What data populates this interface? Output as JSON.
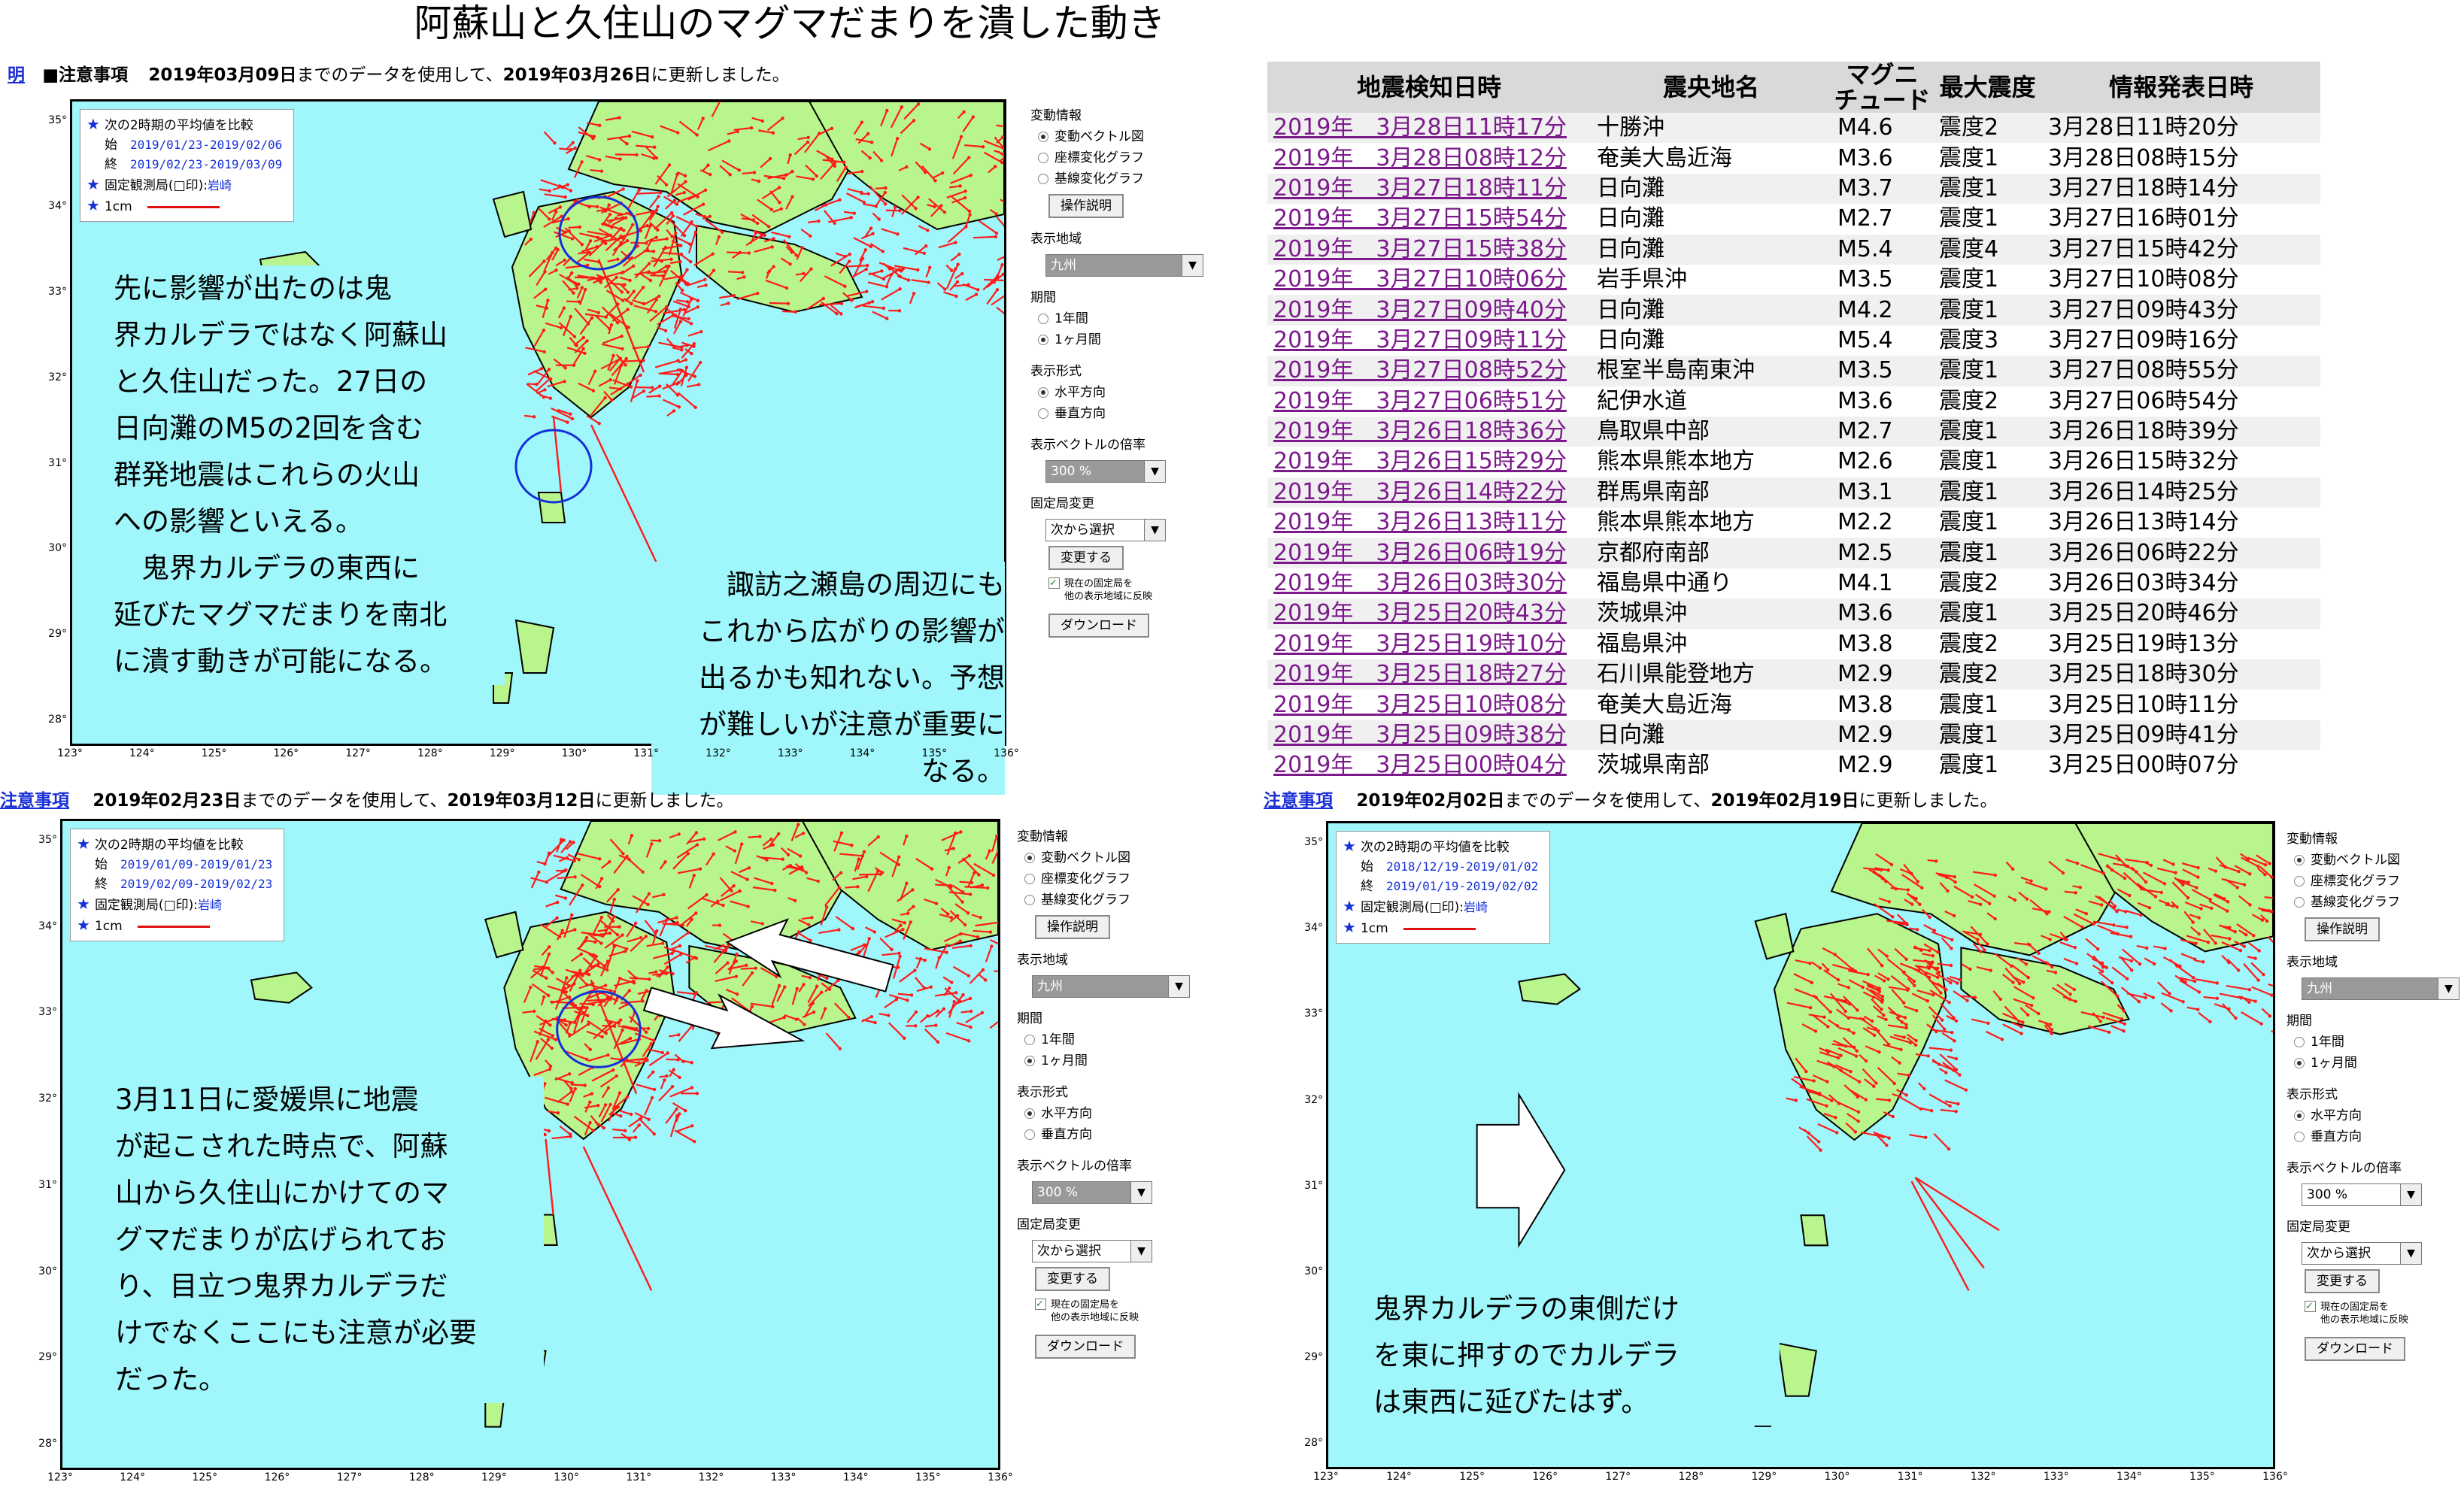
{
  "title": "阿蘇山と久住山のマグマだまりを潰した動き",
  "legend_common": {
    "compare_label": "次の2時期の平均値を比較",
    "start_label": "始",
    "end_label": "終",
    "fixed_station_label": "固定観測局(□印):",
    "fixed_station": "岩崎",
    "scale_label": "1cm"
  },
  "axes": {
    "lat": [
      "35°",
      "34°",
      "33°",
      "32°",
      "31°",
      "30°",
      "29°",
      "28°"
    ],
    "lon": [
      "123°",
      "124°",
      "125°",
      "126°",
      "127°",
      "128°",
      "129°",
      "130°",
      "131°",
      "132°",
      "133°",
      "134°",
      "135°",
      "136°"
    ]
  },
  "controls": {
    "fluct_title": "変動情報",
    "fluct_options": [
      "変動ベクトル図",
      "座標変化グラフ",
      "基線変化グラフ"
    ],
    "manual_button": "操作説明",
    "region_title": "表示地域",
    "region_value": "九州",
    "period_title": "期間",
    "period_options": [
      "1年間",
      "1ヶ月間"
    ],
    "format_title": "表示形式",
    "format_options": [
      "水平方向",
      "垂直方向"
    ],
    "magnify_title": "表示ベクトルの倍率",
    "magnify_value": "300 %",
    "fixed_title": "固定局変更",
    "fixed_value": "次から選択",
    "change_button": "変更する",
    "reflect_line1": "現在の固定局を",
    "reflect_line2": "他の表示地域に反映",
    "download_button": "ダウンロード"
  },
  "panel1": {
    "hdr_prefix": "明",
    "hdr_link": "■注意事項",
    "hdr_date1": "2019年03月09日",
    "hdr_mid": "までのデータを使用して、",
    "hdr_date2": "2019年03月26日",
    "hdr_end": "に更新しました。",
    "start_range": "2019/01/23-2019/02/06",
    "end_range": "2019/02/23-2019/03/09",
    "note_left": [
      "先に影響が出たのは鬼",
      "界カルデラではなく阿蘇山",
      "と久住山だった。27日の",
      "日向灘のM5の2回を含む",
      "群発地震はこれらの火山",
      "への影響といえる。",
      "　鬼界カルデラの東西に",
      "延びたマグマだまりを南北",
      "に潰す動きが可能になる。"
    ],
    "note_right": [
      "諏訪之瀬島の周辺にも",
      "これから広がりの影響が",
      "出るかも知れない。予想",
      "が難しいが注意が重要に",
      "なる。"
    ]
  },
  "panel2": {
    "hdr_link": "注意事項",
    "hdr_date1": "2019年02月23日",
    "hdr_mid": "までのデータを使用して、",
    "hdr_date2": "2019年03月12日",
    "hdr_end": "に更新しました。",
    "start_range": "2019/01/09-2019/01/23",
    "end_range": "2019/02/09-2019/02/23",
    "note": [
      "3月11日に愛媛県に地震",
      "が起こされた時点で、阿蘇",
      "山から久住山にかけてのマ",
      "グマだまりが広げられてお",
      "り、目立つ鬼界カルデラだ",
      "けでなくここにも注意が必要",
      "だった。"
    ]
  },
  "panel3": {
    "hdr_link": "注意事項",
    "hdr_date1": "2019年02月02日",
    "hdr_mid": "までのデータを使用して、",
    "hdr_date2": "2019年02月19日",
    "hdr_end": "に更新しました。",
    "start_range": "2018/12/19-2019/01/02",
    "end_range": "2019/01/19-2019/02/02",
    "note": [
      "鬼界カルデラの東側だけ",
      "を東に押すのでカルデラ",
      "は東西に延びたはず。"
    ]
  },
  "eq_table": {
    "headers": [
      "地震検知日時",
      "震央地名",
      "マグニ チュード",
      "最大震度",
      "情報発表日時"
    ],
    "rows": [
      [
        "2019年　3月28日11時17分",
        "十勝沖",
        "M4.6",
        "震度2",
        "3月28日11時20分"
      ],
      [
        "2019年　3月28日08時12分",
        "奄美大島近海",
        "M3.6",
        "震度1",
        "3月28日08時15分"
      ],
      [
        "2019年　3月27日18時11分",
        "日向灘",
        "M3.7",
        "震度1",
        "3月27日18時14分"
      ],
      [
        "2019年　3月27日15時54分",
        "日向灘",
        "M2.7",
        "震度1",
        "3月27日16時01分"
      ],
      [
        "2019年　3月27日15時38分",
        "日向灘",
        "M5.4",
        "震度4",
        "3月27日15時42分"
      ],
      [
        "2019年　3月27日10時06分",
        "岩手県沖",
        "M3.5",
        "震度1",
        "3月27日10時08分"
      ],
      [
        "2019年　3月27日09時40分",
        "日向灘",
        "M4.2",
        "震度1",
        "3月27日09時43分"
      ],
      [
        "2019年　3月27日09時11分",
        "日向灘",
        "M5.4",
        "震度3",
        "3月27日09時16分"
      ],
      [
        "2019年　3月27日08時52分",
        "根室半島南東沖",
        "M3.5",
        "震度1",
        "3月27日08時55分"
      ],
      [
        "2019年　3月27日06時51分",
        "紀伊水道",
        "M3.6",
        "震度2",
        "3月27日06時54分"
      ],
      [
        "2019年　3月26日18時36分",
        "鳥取県中部",
        "M2.7",
        "震度1",
        "3月26日18時39分"
      ],
      [
        "2019年　3月26日15時29分",
        "熊本県熊本地方",
        "M2.6",
        "震度1",
        "3月26日15時32分"
      ],
      [
        "2019年　3月26日14時22分",
        "群馬県南部",
        "M3.1",
        "震度1",
        "3月26日14時25分"
      ],
      [
        "2019年　3月26日13時11分",
        "熊本県熊本地方",
        "M2.2",
        "震度1",
        "3月26日13時14分"
      ],
      [
        "2019年　3月26日06時19分",
        "京都府南部",
        "M2.5",
        "震度1",
        "3月26日06時22分"
      ],
      [
        "2019年　3月26日03時30分",
        "福島県中通り",
        "M4.1",
        "震度2",
        "3月26日03時34分"
      ],
      [
        "2019年　3月25日20時43分",
        "茨城県沖",
        "M3.6",
        "震度1",
        "3月25日20時46分"
      ],
      [
        "2019年　3月25日19時10分",
        "福島県沖",
        "M3.8",
        "震度2",
        "3月25日19時13分"
      ],
      [
        "2019年　3月25日18時27分",
        "石川県能登地方",
        "M2.9",
        "震度2",
        "3月25日18時30分"
      ],
      [
        "2019年　3月25日10時08分",
        "奄美大島近海",
        "M3.8",
        "震度1",
        "3月25日10時11分"
      ],
      [
        "2019年　3月25日09時38分",
        "日向灘",
        "M2.9",
        "震度1",
        "3月25日09時41分"
      ],
      [
        "2019年　3月25日00時04分",
        "茨城県南部",
        "M2.9",
        "震度1",
        "3月25日00時07分"
      ]
    ]
  },
  "colors": {
    "sea": "#9ff7fb",
    "land": "#b8f58c",
    "vector": "#ff1a1a",
    "link": "#7c1a8c",
    "circle": "#1530d8"
  }
}
